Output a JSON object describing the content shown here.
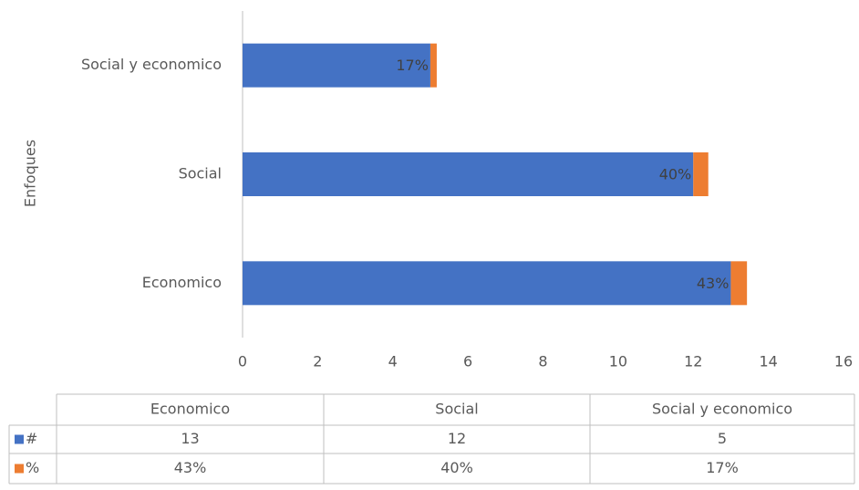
{
  "chart_data": {
    "type": "bar",
    "orientation": "horizontal",
    "stacked": true,
    "y_label": "Enfoques",
    "categories": [
      "Economico",
      "Social",
      "Social y economico"
    ],
    "series": [
      {
        "name": "#",
        "color": "#4472c4",
        "values": [
          13,
          12,
          5
        ]
      },
      {
        "name": "%",
        "color": "#ed7d31",
        "values": [
          0.43,
          0.4,
          0.17
        ],
        "value_labels": [
          "43%",
          "40%",
          "17%"
        ]
      }
    ],
    "xlim": [
      0,
      16
    ],
    "xticks": [
      0,
      2,
      4,
      6,
      8,
      10,
      12,
      14,
      16
    ],
    "data_table": true
  }
}
